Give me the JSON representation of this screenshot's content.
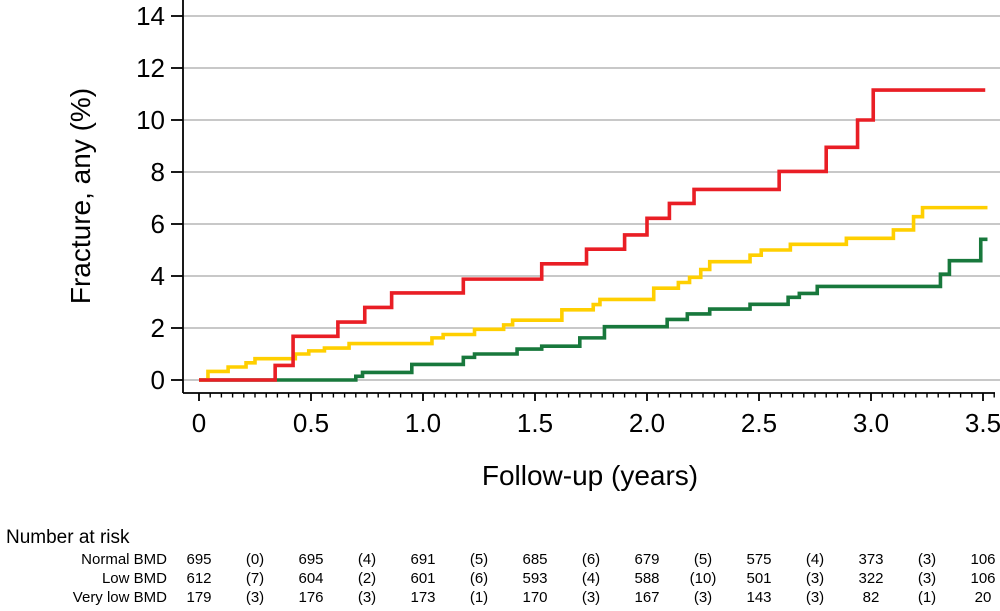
{
  "chart_data": {
    "type": "line",
    "style": "step",
    "title": "",
    "xlabel": "Follow-up (years)",
    "ylabel": "Fracture, any (%)",
    "xlim": [
      0,
      3.57
    ],
    "ylim_visible": [
      0,
      14.6
    ],
    "grid": "horizontal",
    "legend": "none",
    "xticks": {
      "values": [
        0,
        0.5,
        1.0,
        1.5,
        2.0,
        2.5,
        3.0,
        3.5
      ],
      "labels": [
        "0",
        "0.5",
        "1.0",
        "1.5",
        "2.0",
        "2.5",
        "3.0",
        "3.5"
      ]
    },
    "minor_xtick_step": 0.05,
    "yticks": {
      "values": [
        0,
        2,
        4,
        6,
        8,
        10,
        12,
        14
      ],
      "labels": [
        "0",
        "2",
        "4",
        "6",
        "8",
        "10",
        "12",
        "14"
      ]
    },
    "series": [
      {
        "name": "Normal BMD",
        "color": "#18783c",
        "steps": [
          [
            0,
            0
          ],
          [
            0.7,
            0.14
          ],
          [
            0.73,
            0.29
          ],
          [
            0.95,
            0.6
          ],
          [
            1.18,
            0.87
          ],
          [
            1.23,
            1.0
          ],
          [
            1.42,
            1.19
          ],
          [
            1.53,
            1.3
          ],
          [
            1.7,
            1.62
          ],
          [
            1.81,
            2.05
          ],
          [
            2.09,
            2.33
          ],
          [
            2.18,
            2.54
          ],
          [
            2.28,
            2.73
          ],
          [
            2.46,
            2.91
          ],
          [
            2.63,
            3.18
          ],
          [
            2.68,
            3.33
          ],
          [
            2.76,
            3.6
          ],
          [
            3.31,
            4.07
          ],
          [
            3.35,
            4.59
          ],
          [
            3.49,
            5.41
          ],
          [
            3.52,
            5.41
          ]
        ]
      },
      {
        "name": "Low BMD",
        "color": "#ffcf00",
        "steps": [
          [
            0,
            0
          ],
          [
            0.04,
            0.33
          ],
          [
            0.13,
            0.5
          ],
          [
            0.21,
            0.66
          ],
          [
            0.25,
            0.82
          ],
          [
            0.43,
            1.0
          ],
          [
            0.49,
            1.12
          ],
          [
            0.56,
            1.23
          ],
          [
            0.67,
            1.4
          ],
          [
            1.04,
            1.62
          ],
          [
            1.09,
            1.75
          ],
          [
            1.23,
            1.95
          ],
          [
            1.36,
            2.12
          ],
          [
            1.4,
            2.3
          ],
          [
            1.62,
            2.7
          ],
          [
            1.76,
            2.9
          ],
          [
            1.79,
            3.1
          ],
          [
            2.03,
            3.53
          ],
          [
            2.14,
            3.75
          ],
          [
            2.19,
            3.95
          ],
          [
            2.24,
            4.25
          ],
          [
            2.28,
            4.55
          ],
          [
            2.46,
            4.8
          ],
          [
            2.51,
            5.0
          ],
          [
            2.64,
            5.22
          ],
          [
            2.89,
            5.45
          ],
          [
            3.1,
            5.77
          ],
          [
            3.19,
            6.28
          ],
          [
            3.23,
            6.63
          ],
          [
            3.52,
            6.63
          ]
        ]
      },
      {
        "name": "Very low BMD",
        "color": "#e91e25",
        "steps": [
          [
            0,
            0
          ],
          [
            0.34,
            0.56
          ],
          [
            0.42,
            1.68
          ],
          [
            0.62,
            2.23
          ],
          [
            0.74,
            2.79
          ],
          [
            0.86,
            3.35
          ],
          [
            1.18,
            3.88
          ],
          [
            1.53,
            4.47
          ],
          [
            1.73,
            5.03
          ],
          [
            1.9,
            5.58
          ],
          [
            2.0,
            6.22
          ],
          [
            2.1,
            6.79
          ],
          [
            2.21,
            7.33
          ],
          [
            2.59,
            8.02
          ],
          [
            2.8,
            8.95
          ],
          [
            2.94,
            10.0
          ],
          [
            3.01,
            11.15
          ],
          [
            3.51,
            11.15
          ]
        ]
      }
    ]
  },
  "risk_table": {
    "title": "Number at risk",
    "rows": [
      {
        "label": "Normal BMD",
        "values": [
          "695",
          "(0)",
          "695",
          "(4)",
          "691",
          "(5)",
          "685",
          "(6)",
          "679",
          "(5)",
          "575",
          "(4)",
          "373",
          "(3)",
          "106"
        ]
      },
      {
        "label": "Low BMD",
        "values": [
          "612",
          "(7)",
          "604",
          "(2)",
          "601",
          "(6)",
          "593",
          "(4)",
          "588",
          "(10)",
          "501",
          "(3)",
          "322",
          "(3)",
          "106"
        ]
      },
      {
        "label": "Very low BMD",
        "values": [
          "179",
          "(3)",
          "176",
          "(3)",
          "173",
          "(1)",
          "170",
          "(3)",
          "167",
          "(3)",
          "143",
          "(3)",
          "82",
          "(1)",
          "20"
        ]
      }
    ]
  }
}
